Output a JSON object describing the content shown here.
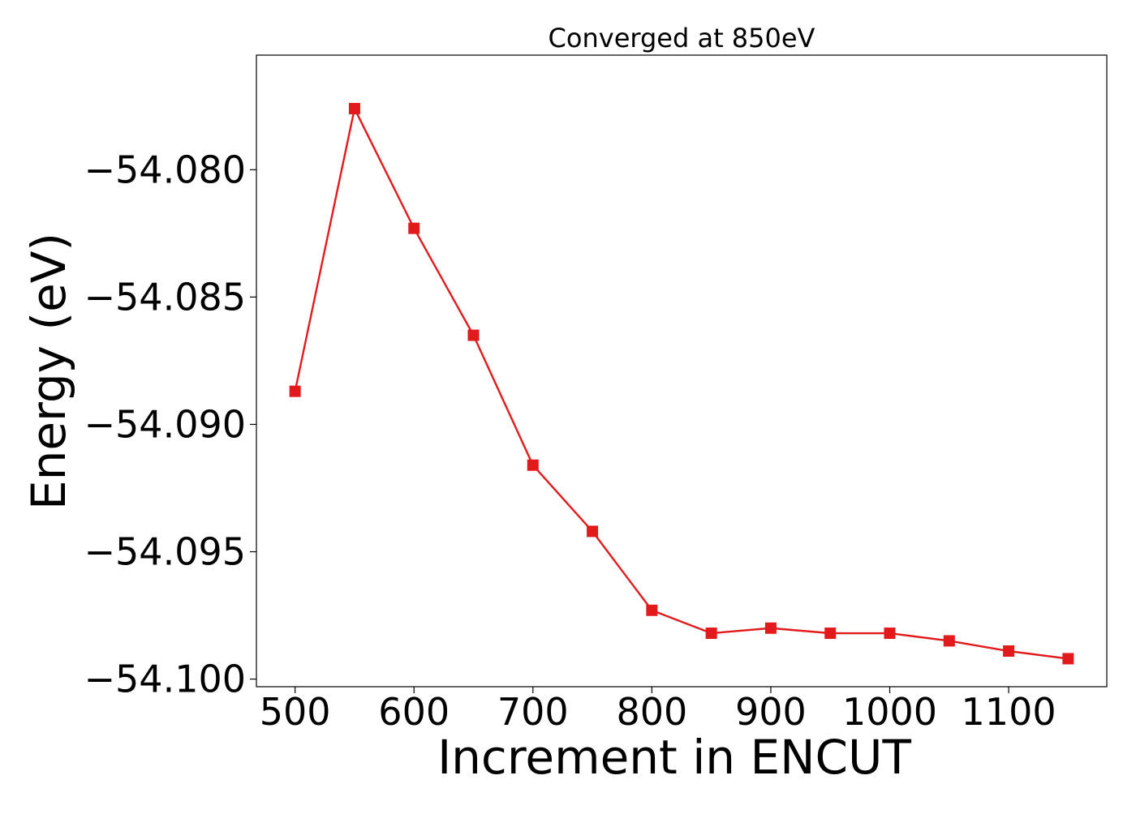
{
  "chart_data": {
    "type": "line",
    "title": "Converged at 850eV",
    "xlabel": "Increment in ENCUT",
    "ylabel": "Energy (eV)",
    "xlim": [
      467.5,
      1182.5
    ],
    "ylim": [
      -54.1003,
      -54.0755
    ],
    "xticks": [
      500,
      600,
      700,
      800,
      900,
      1000,
      1100
    ],
    "xtick_labels": [
      "500",
      "600",
      "700",
      "800",
      "900",
      "1000",
      "1100"
    ],
    "yticks": [
      -54.08,
      -54.085,
      -54.09,
      -54.095,
      -54.1
    ],
    "ytick_labels": [
      "−54.080",
      "−54.085",
      "−54.090",
      "−54.095",
      "−54.100"
    ],
    "grid": false,
    "series": [
      {
        "color": "#e31a1c",
        "marker": "square",
        "x": [
          500,
          550,
          600,
          650,
          700,
          750,
          800,
          850,
          900,
          950,
          1000,
          1050,
          1100,
          1150
        ],
        "y": [
          -54.0887,
          -54.0776,
          -54.0823,
          -54.0865,
          -54.0916,
          -54.0942,
          -54.0973,
          -54.0982,
          -54.098,
          -54.0982,
          -54.0982,
          -54.0985,
          -54.0989,
          -54.0992
        ]
      }
    ]
  }
}
